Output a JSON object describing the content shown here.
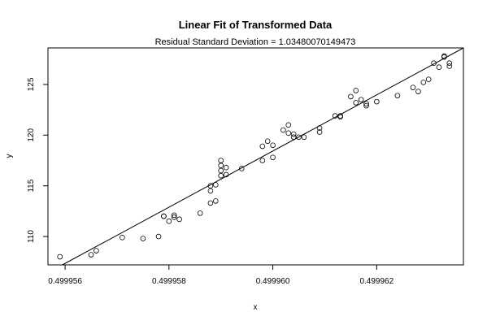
{
  "chart_data": {
    "type": "scatter",
    "title": "Linear Fit of Transformed Data",
    "subtitle": "Residual Standard Deviation =  1.03480070149473",
    "xlabel": "x",
    "ylabel": "y",
    "xlim": [
      0.49995567,
      0.49996367
    ],
    "ylim": [
      107.2,
      128.6
    ],
    "x_ticks": [
      0.499956,
      0.499958,
      0.49996,
      0.499962
    ],
    "x_tick_labels": [
      "0.499956",
      "0.499958",
      "0.499960",
      "0.499962"
    ],
    "y_ticks": [
      110,
      115,
      120,
      125
    ],
    "y_tick_labels": [
      "110",
      "115",
      "120",
      "125"
    ],
    "grid": false,
    "fit_line": {
      "x": [
        0.499955947,
        0.49996367
      ],
      "y": [
        107.2,
        128.6
      ]
    },
    "points": [
      [
        0.4999559,
        108.0
      ],
      [
        0.4999565,
        108.2
      ],
      [
        0.4999566,
        108.6
      ],
      [
        0.4999571,
        109.9
      ],
      [
        0.4999575,
        109.8
      ],
      [
        0.4999578,
        110.0
      ],
      [
        0.4999579,
        112.0
      ],
      [
        0.4999579,
        112.0
      ],
      [
        0.4999581,
        112.1
      ],
      [
        0.4999581,
        111.9
      ],
      [
        0.499958,
        111.5
      ],
      [
        0.4999582,
        111.7
      ],
      [
        0.4999586,
        112.3
      ],
      [
        0.4999588,
        113.3
      ],
      [
        0.4999588,
        115.0
      ],
      [
        0.4999588,
        114.5
      ],
      [
        0.4999589,
        113.5
      ],
      [
        0.4999589,
        115.1
      ],
      [
        0.499959,
        117.5
      ],
      [
        0.499959,
        117.0
      ],
      [
        0.499959,
        116.5
      ],
      [
        0.499959,
        116.0
      ],
      [
        0.4999591,
        116.8
      ],
      [
        0.4999591,
        116.1
      ],
      [
        0.4999594,
        116.7
      ],
      [
        0.4999598,
        117.5
      ],
      [
        0.4999598,
        118.9
      ],
      [
        0.4999599,
        119.4
      ],
      [
        0.49996,
        117.8
      ],
      [
        0.49996,
        119.0
      ],
      [
        0.4999602,
        120.5
      ],
      [
        0.4999603,
        120.2
      ],
      [
        0.4999603,
        121.0
      ],
      [
        0.4999604,
        120.1
      ],
      [
        0.4999604,
        119.8
      ],
      [
        0.4999605,
        119.8
      ],
      [
        0.4999606,
        119.8
      ],
      [
        0.4999609,
        120.3
      ],
      [
        0.4999609,
        120.7
      ],
      [
        0.4999612,
        121.9
      ],
      [
        0.4999613,
        121.9
      ],
      [
        0.4999613,
        121.8
      ],
      [
        0.4999615,
        123.8
      ],
      [
        0.4999616,
        124.4
      ],
      [
        0.4999616,
        123.2
      ],
      [
        0.4999617,
        123.5
      ],
      [
        0.4999618,
        122.9
      ],
      [
        0.4999618,
        123.1
      ],
      [
        0.499962,
        123.3
      ],
      [
        0.4999624,
        123.9
      ],
      [
        0.4999627,
        124.7
      ],
      [
        0.4999628,
        124.3
      ],
      [
        0.4999629,
        125.2
      ],
      [
        0.499963,
        125.5
      ],
      [
        0.4999631,
        127.1
      ],
      [
        0.4999632,
        126.7
      ],
      [
        0.4999633,
        127.7
      ],
      [
        0.4999633,
        127.8
      ],
      [
        0.4999634,
        126.8
      ],
      [
        0.4999634,
        127.1
      ]
    ]
  }
}
